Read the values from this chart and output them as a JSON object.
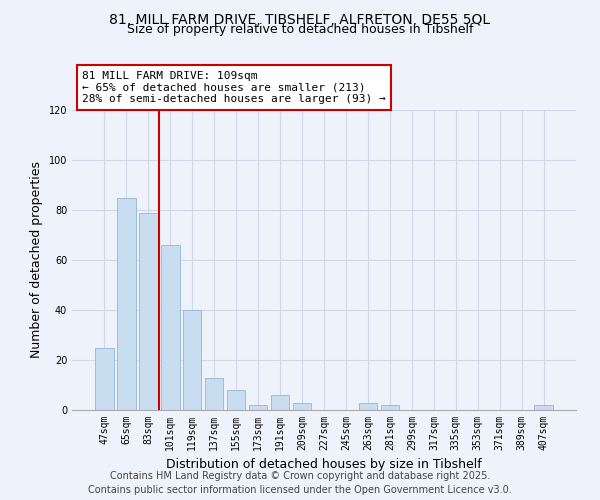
{
  "title_line1": "81, MILL FARM DRIVE, TIBSHELF, ALFRETON, DE55 5QL",
  "title_line2": "Size of property relative to detached houses in Tibshelf",
  "xlabel": "Distribution of detached houses by size in Tibshelf",
  "ylabel": "Number of detached properties",
  "categories": [
    "47sqm",
    "65sqm",
    "83sqm",
    "101sqm",
    "119sqm",
    "137sqm",
    "155sqm",
    "173sqm",
    "191sqm",
    "209sqm",
    "227sqm",
    "245sqm",
    "263sqm",
    "281sqm",
    "299sqm",
    "317sqm",
    "335sqm",
    "353sqm",
    "371sqm",
    "389sqm",
    "407sqm"
  ],
  "values": [
    25,
    85,
    79,
    66,
    40,
    13,
    8,
    2,
    6,
    3,
    0,
    0,
    3,
    2,
    0,
    0,
    0,
    0,
    0,
    0,
    2
  ],
  "bar_color": "#c9ddf0",
  "bar_edge_color": "#8fb8d8",
  "vline_x_index": 2,
  "vline_color": "#cc0000",
  "ylim": [
    0,
    120
  ],
  "yticks": [
    0,
    20,
    40,
    60,
    80,
    100,
    120
  ],
  "annotation_title": "81 MILL FARM DRIVE: 109sqm",
  "annotation_line2": "← 65% of detached houses are smaller (213)",
  "annotation_line3": "28% of semi-detached houses are larger (93) →",
  "footer_line1": "Contains HM Land Registry data © Crown copyright and database right 2025.",
  "footer_line2": "Contains public sector information licensed under the Open Government Licence v3.0.",
  "bg_color": "#eef2fa",
  "grid_color": "#d0d8e8",
  "title_fontsize": 10,
  "subtitle_fontsize": 9,
  "axis_label_fontsize": 9,
  "tick_fontsize": 7,
  "annotation_fontsize": 8,
  "footer_fontsize": 7
}
